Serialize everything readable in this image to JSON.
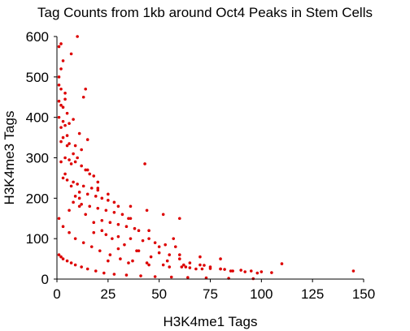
{
  "chart_data": {
    "type": "scatter",
    "title": "Tag Counts from 1kb around Oct4 Peaks in Stem Cells",
    "xlabel": "H3K4me1 Tags",
    "ylabel": "H3K4me3 Tags",
    "xlim": [
      0,
      150
    ],
    "ylim": [
      0,
      600
    ],
    "xticks": [
      0,
      25,
      50,
      75,
      100,
      125,
      150
    ],
    "yticks": [
      0,
      100,
      200,
      300,
      400,
      500,
      600
    ],
    "xtick_labels": [
      "0",
      "25",
      "50",
      "75",
      "100",
      "125",
      "150"
    ],
    "ytick_labels": [
      "0",
      "100",
      "200",
      "300",
      "400",
      "500",
      "600"
    ],
    "grid": false,
    "legend": "none",
    "marker_color": "#dd0000",
    "series": [
      {
        "x": [
          1,
          2,
          10,
          1,
          7,
          2,
          3,
          1,
          2,
          4,
          13,
          14,
          2,
          1,
          3,
          4,
          5,
          1,
          3,
          6,
          2,
          4,
          8,
          11,
          3,
          5,
          2,
          6,
          9,
          12,
          15,
          8,
          4,
          6,
          7,
          9,
          12,
          14,
          16,
          18,
          3,
          5,
          8,
          10,
          13,
          17,
          20,
          11,
          15,
          19,
          22,
          25,
          8,
          12,
          16,
          20,
          24,
          28,
          32,
          43,
          36,
          22,
          26,
          30,
          34,
          38,
          45,
          18,
          24,
          30,
          36,
          42,
          48,
          53,
          11,
          6,
          20,
          28,
          36,
          44,
          52,
          60,
          58,
          30,
          40,
          50,
          60,
          70,
          80,
          57,
          25,
          35,
          45,
          55,
          65,
          75,
          82,
          90,
          95,
          100,
          105,
          110,
          145,
          63,
          72,
          80,
          86,
          92,
          98,
          5,
          10,
          15,
          20,
          25,
          30,
          35,
          40,
          45,
          50,
          55,
          60,
          65,
          70,
          75,
          80,
          85,
          2,
          4,
          7,
          9,
          11,
          14,
          18,
          22,
          27,
          33,
          39,
          46,
          54,
          62,
          71,
          1,
          3,
          6,
          9,
          13,
          17,
          21,
          26,
          31,
          37,
          44,
          52,
          61,
          68,
          1,
          2,
          3,
          5,
          7,
          9,
          12,
          15,
          19,
          23,
          28,
          34,
          41,
          48,
          56,
          64,
          73,
          84,
          96
        ],
        "y": [
          575,
          582,
          600,
          500,
          557,
          520,
          540,
          480,
          470,
          460,
          450,
          470,
          430,
          440,
          425,
          445,
          410,
          400,
          390,
          385,
          375,
          380,
          395,
          360,
          350,
          355,
          340,
          335,
          330,
          320,
          345,
          310,
          300,
          295,
          285,
          290,
          280,
          270,
          260,
          255,
          250,
          245,
          240,
          235,
          230,
          225,
          220,
          215,
          210,
          205,
          200,
          195,
          190,
          185,
          180,
          175,
          170,
          165,
          160,
          285,
          150,
          145,
          140,
          135,
          130,
          125,
          120,
          115,
          110,
          105,
          100,
          95,
          90,
          85,
          200,
          170,
          225,
          190,
          180,
          170,
          160,
          150,
          80,
          75,
          70,
          65,
          60,
          55,
          50,
          100,
          45,
          40,
          35,
          30,
          28,
          26,
          24,
          22,
          20,
          18,
          16,
          38,
          20,
          30,
          34,
          25,
          20,
          18,
          15,
          330,
          300,
          270,
          240,
          210,
          180,
          150,
          120,
          100,
          80,
          60,
          50,
          40,
          35,
          30,
          25,
          20,
          290,
          260,
          230,
          205,
          180,
          160,
          140,
          120,
          100,
          85,
          70,
          55,
          45,
          35,
          25,
          150,
          130,
          115,
          100,
          90,
          80,
          70,
          60,
          50,
          45,
          40,
          35,
          30,
          25,
          60,
          55,
          50,
          45,
          40,
          35,
          30,
          25,
          20,
          15,
          12,
          10,
          8,
          6,
          5,
          4,
          3,
          2,
          1
        ]
      }
    ]
  }
}
